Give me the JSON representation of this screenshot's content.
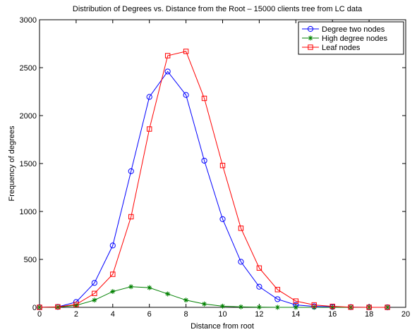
{
  "chart_data": {
    "type": "line",
    "title": "Distribution of Degrees vs. Distance from the Root – 15000 clients tree from LC data",
    "xlabel": "Distance from root",
    "ylabel": "Frequency of degrees",
    "xlim": [
      0,
      20
    ],
    "ylim": [
      0,
      3000
    ],
    "xticks": [
      0,
      2,
      4,
      6,
      8,
      10,
      12,
      14,
      16,
      18,
      20
    ],
    "yticks": [
      0,
      500,
      1000,
      1500,
      2000,
      2500,
      3000
    ],
    "grid": false,
    "legend_position": "top-right",
    "series": [
      {
        "name": "Degree two nodes",
        "color": "#0000ff",
        "marker": "circle",
        "x": [
          0,
          1,
          2,
          3,
          4,
          5,
          6,
          7,
          8,
          9,
          10,
          11,
          12,
          13,
          14,
          15,
          16,
          17,
          18,
          19
        ],
        "values": [
          0,
          5,
          55,
          255,
          645,
          1420,
          2195,
          2460,
          2215,
          1530,
          920,
          475,
          215,
          85,
          25,
          10,
          5,
          2,
          0,
          0
        ]
      },
      {
        "name": "High degree nodes",
        "color": "#008000",
        "marker": "star",
        "x": [
          0,
          1,
          2,
          3,
          4,
          5,
          6,
          7,
          8,
          9,
          10,
          11,
          12,
          13,
          14,
          15,
          16,
          17,
          18,
          19
        ],
        "values": [
          0,
          2,
          20,
          75,
          165,
          215,
          205,
          140,
          75,
          35,
          12,
          5,
          2,
          0,
          0,
          0,
          0,
          0,
          0,
          0
        ]
      },
      {
        "name": "Leaf nodes",
        "color": "#ff0000",
        "marker": "square",
        "x": [
          0,
          1,
          2,
          3,
          4,
          5,
          6,
          7,
          8,
          9,
          10,
          11,
          12,
          13,
          14,
          15,
          16,
          17,
          18,
          19
        ],
        "values": [
          0,
          5,
          30,
          145,
          345,
          945,
          1860,
          2625,
          2670,
          2180,
          1480,
          825,
          410,
          185,
          65,
          25,
          10,
          2,
          0,
          0
        ]
      }
    ]
  }
}
